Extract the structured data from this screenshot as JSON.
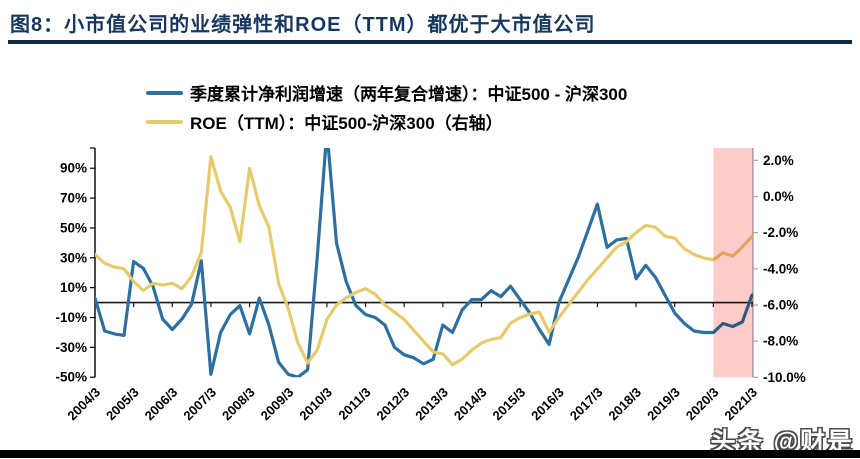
{
  "header": {
    "title": "图8：小市值公司的业绩弹性和ROE（TTM）都优于大市值公司"
  },
  "legend": [
    {
      "label": "季度累计净利润增速（两年复合增速）：中证500 - 沪深300",
      "color": "#2D6FA0"
    },
    {
      "label": "ROE（TTM）：中证500-沪深300（右轴）",
      "color": "#E6CB6E"
    }
  ],
  "watermark": "头条 @财是",
  "colors": {
    "title": "#17375E",
    "blue_series": "#2D6FA0",
    "yellow_series": "#E6CB6E",
    "highlight_band": "#FFCCCC",
    "zero_axis": "#1a1a1a",
    "left_axis": "#000000",
    "right_axis": "#A6A6A6"
  },
  "chart_data": {
    "type": "line",
    "title": "图8：小市值公司的业绩弹性和ROE（TTM）都优于大市值公司",
    "x_tick_labels": [
      "2004/3",
      "2005/3",
      "2006/3",
      "2007/3",
      "2008/3",
      "2009/3",
      "2010/3",
      "2011/3",
      "2012/3",
      "2013/3",
      "2014/3",
      "2015/3",
      "2016/3",
      "2017/3",
      "2018/3",
      "2019/3",
      "2020/3",
      "2021/3"
    ],
    "left_axis": {
      "tick_labels": [
        "90%",
        "70%",
        "50%",
        "30%",
        "10%",
        "-10%",
        "-30%",
        "-50%"
      ],
      "tick_values": [
        90,
        70,
        50,
        30,
        10,
        -10,
        -30,
        -50
      ],
      "range": [
        -50,
        102
      ]
    },
    "right_axis": {
      "tick_labels": [
        "2.0%",
        "0.0%",
        "-2.0%",
        "-4.0%",
        "-6.0%",
        "-8.0%",
        "-10.0%"
      ],
      "tick_values": [
        2,
        0,
        -2,
        -4,
        -6,
        -8,
        -10
      ],
      "range": [
        -10,
        2.67
      ]
    },
    "highlight_band": {
      "from": "2020/3",
      "to": "2021/3",
      "color": "#FFCCCC"
    },
    "x_quarters": [
      "2004/3",
      "2004/6",
      "2004/9",
      "2004/12",
      "2005/3",
      "2005/6",
      "2005/9",
      "2005/12",
      "2006/3",
      "2006/6",
      "2006/9",
      "2006/12",
      "2007/3",
      "2007/6",
      "2007/9",
      "2007/12",
      "2008/3",
      "2008/6",
      "2008/9",
      "2008/12",
      "2009/3",
      "2009/6",
      "2009/9",
      "2009/12",
      "2010/3",
      "2010/6",
      "2010/9",
      "2010/12",
      "2011/3",
      "2011/6",
      "2011/9",
      "2011/12",
      "2012/3",
      "2012/6",
      "2012/9",
      "2012/12",
      "2013/3",
      "2013/6",
      "2013/9",
      "2013/12",
      "2014/3",
      "2014/6",
      "2014/9",
      "2014/12",
      "2015/3",
      "2015/6",
      "2015/9",
      "2015/12",
      "2016/3",
      "2016/6",
      "2016/9",
      "2016/12",
      "2017/3",
      "2017/6",
      "2017/9",
      "2017/12",
      "2018/3",
      "2018/6",
      "2018/9",
      "2018/12",
      "2019/3",
      "2019/6",
      "2019/9",
      "2019/12",
      "2020/3",
      "2020/6",
      "2020/9",
      "2020/12",
      "2021/3"
    ],
    "series": [
      {
        "name": "季度累计净利润增速（两年复合增速）：中证500 - 沪深300",
        "axis": "left",
        "color": "#2D6FA0",
        "values": [
          3,
          -19,
          -21,
          -22,
          27.5,
          23,
          11,
          -11,
          -18,
          -11,
          -1,
          28,
          -48,
          -20,
          -8,
          -2,
          -21,
          3,
          -15,
          -40,
          -48,
          -50,
          -45,
          30,
          115,
          40,
          14,
          -2,
          -8,
          -10,
          -15,
          -30,
          -35,
          -37,
          -41,
          -38,
          -15,
          -20,
          -5,
          2,
          2,
          8,
          4,
          11,
          2,
          -7,
          -18,
          -28,
          0,
          15,
          30,
          48,
          66,
          37,
          42,
          43,
          16,
          25,
          17,
          5,
          -7,
          -14,
          -19,
          -20,
          -20,
          -14,
          -16,
          -13,
          5
        ]
      },
      {
        "name": "ROE（TTM）：中证500-沪深300（右轴）",
        "axis": "right",
        "color": "#E6CB6E",
        "values": [
          -3.2,
          -3.7,
          -3.9,
          -4.0,
          -4.7,
          -5.2,
          -4.8,
          -4.9,
          -4.8,
          -5.1,
          -4.4,
          -3.1,
          2.2,
          0.3,
          -0.6,
          -2.5,
          1.55,
          -0.5,
          -1.7,
          -4.8,
          -6.2,
          -8.1,
          -9.2,
          -8.5,
          -6.8,
          -6.0,
          -5.6,
          -5.3,
          -5.1,
          -5.4,
          -6.0,
          -6.4,
          -6.8,
          -7.4,
          -8.0,
          -8.6,
          -8.7,
          -9.3,
          -9.0,
          -8.5,
          -8.1,
          -7.9,
          -7.8,
          -7.0,
          -6.7,
          -6.5,
          -6.4,
          -7.5,
          -6.7,
          -6.0,
          -5.3,
          -4.6,
          -4.0,
          -3.4,
          -2.8,
          -2.5,
          -2.0,
          -1.6,
          -1.7,
          -2.2,
          -2.3,
          -2.9,
          -3.2,
          -3.4,
          -3.5,
          -3.1,
          -3.3,
          -2.8,
          -2.2
        ]
      }
    ]
  }
}
